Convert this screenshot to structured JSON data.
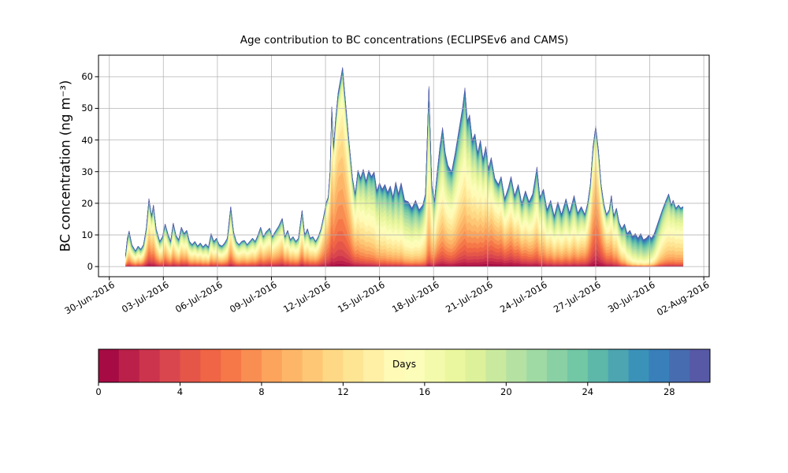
{
  "chart_data": {
    "type": "area",
    "title": "Age contribution to BC concentrations (ECLIPSEv6 and CAMS)",
    "ylabel": "BC concentration (ng m⁻³)",
    "xlabel": "",
    "x_tick_labels": [
      "30-Jun-2016",
      "03-Jul-2016",
      "06-Jul-2016",
      "09-Jul-2016",
      "12-Jul-2016",
      "15-Jul-2016",
      "18-Jul-2016",
      "21-Jul-2016",
      "24-Jul-2016",
      "27-Jul-2016",
      "30-Jul-2016",
      "02-Aug-2016"
    ],
    "x_tick_days": [
      0,
      3,
      6,
      9,
      12,
      15,
      18,
      21,
      24,
      27,
      30,
      33
    ],
    "y_ticks": [
      0,
      10,
      20,
      30,
      40,
      50,
      60
    ],
    "xlim_days": [
      -0.6,
      33.3
    ],
    "ylim": [
      -3.2,
      66.8
    ],
    "grid": true,
    "grid_color": "#b0b0b0",
    "spine_color": "#000000",
    "background": "#ffffff",
    "legend_position": "colorbar-bottom",
    "colorbar": {
      "label": "Days",
      "tick_values": [
        0,
        4,
        8,
        12,
        16,
        20,
        24,
        28
      ],
      "tick_labels": [
        "0",
        "4",
        "8",
        "12",
        "16",
        "20",
        "24",
        "28"
      ],
      "min": 0,
      "max": 30,
      "segments": 30
    },
    "colormap_anchors": [
      "#9e0142",
      "#d53e4f",
      "#f46d43",
      "#fdae61",
      "#fee08b",
      "#ffffbf",
      "#e6f598",
      "#abdda4",
      "#66c2a5",
      "#3288bd",
      "#5e4fa2"
    ],
    "age_bins": 30,
    "age_floor_fraction": 0.05,
    "series_columns": [
      "day_since_30jun2016",
      "total_bc_ng_m3",
      "age_mean_days",
      "age_sigma_days"
    ],
    "points": [
      [
        0.9,
        3.5,
        14,
        7
      ],
      [
        1.0,
        9,
        14,
        7
      ],
      [
        1.1,
        11.3,
        14,
        7
      ],
      [
        1.25,
        7,
        14,
        7
      ],
      [
        1.45,
        5,
        14.5,
        7
      ],
      [
        1.6,
        6.5,
        14,
        7
      ],
      [
        1.75,
        5.5,
        14,
        7
      ],
      [
        1.9,
        7,
        13,
        7
      ],
      [
        2.05,
        12,
        11.5,
        6.5
      ],
      [
        2.2,
        21.5,
        11,
        6.5
      ],
      [
        2.35,
        16,
        11,
        6.5
      ],
      [
        2.45,
        19.5,
        11.5,
        6.5
      ],
      [
        2.6,
        12,
        12,
        6.5
      ],
      [
        2.8,
        8,
        13,
        7
      ],
      [
        2.95,
        9.5,
        13,
        7
      ],
      [
        3.1,
        13.5,
        12,
        6.5
      ],
      [
        3.25,
        10.5,
        13,
        7
      ],
      [
        3.4,
        8,
        13,
        7
      ],
      [
        3.55,
        13.8,
        12.5,
        6.5
      ],
      [
        3.7,
        10,
        13,
        7
      ],
      [
        3.85,
        8.5,
        13.5,
        7
      ],
      [
        4.0,
        12.5,
        13,
        7
      ],
      [
        4.15,
        10.5,
        13,
        7
      ],
      [
        4.3,
        11.5,
        13,
        7
      ],
      [
        4.45,
        8,
        14,
        7
      ],
      [
        4.6,
        7,
        14,
        7
      ],
      [
        4.75,
        8,
        14,
        7
      ],
      [
        4.9,
        6.5,
        14,
        7
      ],
      [
        5.05,
        7.5,
        14,
        7
      ],
      [
        5.2,
        6.3,
        14.5,
        7
      ],
      [
        5.35,
        7.2,
        14.5,
        7
      ],
      [
        5.5,
        6.2,
        15,
        7
      ],
      [
        5.65,
        10.5,
        14,
        7
      ],
      [
        5.8,
        8,
        14,
        7
      ],
      [
        5.95,
        9,
        14,
        7
      ],
      [
        6.1,
        7,
        14,
        7
      ],
      [
        6.25,
        6.5,
        14,
        7
      ],
      [
        6.4,
        7.5,
        14,
        7
      ],
      [
        6.55,
        9,
        13.5,
        6.5
      ],
      [
        6.74,
        19,
        12.5,
        6
      ],
      [
        6.9,
        11,
        13,
        6.5
      ],
      [
        7.05,
        8,
        13.5,
        6.5
      ],
      [
        7.2,
        7,
        13.5,
        6.5
      ],
      [
        7.35,
        8,
        13.5,
        6.5
      ],
      [
        7.5,
        8.3,
        13.5,
        6.5
      ],
      [
        7.65,
        7,
        13.5,
        6.5
      ],
      [
        7.8,
        8,
        13.5,
        6.5
      ],
      [
        7.95,
        9,
        13.5,
        6.5
      ],
      [
        8.1,
        8,
        13.5,
        6.5
      ],
      [
        8.25,
        10,
        13,
        6.5
      ],
      [
        8.4,
        12.5,
        12.5,
        6.5
      ],
      [
        8.55,
        9.5,
        12.5,
        6.5
      ],
      [
        8.7,
        11,
        12.5,
        6.5
      ],
      [
        8.9,
        12.2,
        12,
        6.5
      ],
      [
        9.05,
        9.5,
        12.5,
        6.5
      ],
      [
        9.2,
        11,
        12.5,
        6.5
      ],
      [
        9.4,
        12.8,
        12.5,
        6.5
      ],
      [
        9.6,
        15.3,
        12,
        6.5
      ],
      [
        9.75,
        9.5,
        12.5,
        6.5
      ],
      [
        9.9,
        11.5,
        12.5,
        6.5
      ],
      [
        10.05,
        8.5,
        13,
        6.5
      ],
      [
        10.2,
        9.5,
        13,
        6.5
      ],
      [
        10.35,
        8,
        13,
        6.5
      ],
      [
        10.5,
        9,
        13,
        6.5
      ],
      [
        10.7,
        17.8,
        12.5,
        6.5
      ],
      [
        10.85,
        10,
        13,
        6.5
      ],
      [
        11.0,
        12,
        13,
        6.5
      ],
      [
        11.15,
        9,
        13,
        6.5
      ],
      [
        11.3,
        9.5,
        13,
        6.5
      ],
      [
        11.45,
        8,
        12.5,
        6.5
      ],
      [
        11.6,
        9.5,
        12,
        6
      ],
      [
        11.75,
        12,
        11,
        5.5
      ],
      [
        11.9,
        16,
        10.5,
        5
      ],
      [
        12.05,
        20.5,
        10,
        5
      ],
      [
        12.15,
        22,
        9.5,
        4.5
      ],
      [
        12.25,
        30,
        9.5,
        4.5
      ],
      [
        12.35,
        50.5,
        9.5,
        4.5
      ],
      [
        12.45,
        38,
        9.5,
        4.5
      ],
      [
        12.55,
        46,
        9.5,
        4.5
      ],
      [
        12.7,
        55,
        9.5,
        4.5
      ],
      [
        12.95,
        63,
        10,
        4.5
      ],
      [
        13.1,
        53,
        10,
        4.5
      ],
      [
        13.3,
        40,
        10.5,
        5
      ],
      [
        13.5,
        28,
        11.5,
        5.5
      ],
      [
        13.65,
        23,
        12.5,
        6
      ],
      [
        13.8,
        30.5,
        13.5,
        6
      ],
      [
        13.95,
        28,
        14,
        6
      ],
      [
        14.1,
        30.8,
        14.5,
        6
      ],
      [
        14.25,
        27,
        14.5,
        6
      ],
      [
        14.4,
        30.5,
        15,
        6
      ],
      [
        14.55,
        28.5,
        15,
        6
      ],
      [
        14.7,
        30,
        15.5,
        6
      ],
      [
        14.85,
        24,
        15.5,
        6
      ],
      [
        15.0,
        26.5,
        16,
        6
      ],
      [
        15.15,
        24.5,
        16,
        6
      ],
      [
        15.3,
        26,
        16,
        6
      ],
      [
        15.45,
        23.5,
        16.5,
        6
      ],
      [
        15.6,
        25.5,
        16.5,
        6
      ],
      [
        15.75,
        22,
        16.5,
        6
      ],
      [
        15.9,
        26.8,
        17,
        6
      ],
      [
        16.05,
        23,
        17,
        6
      ],
      [
        16.2,
        26.5,
        17,
        6
      ],
      [
        16.4,
        21,
        17.5,
        6
      ],
      [
        16.6,
        20.5,
        17.5,
        6
      ],
      [
        16.8,
        18.5,
        17.5,
        6
      ],
      [
        17.0,
        21,
        17.5,
        6
      ],
      [
        17.2,
        18,
        17,
        6
      ],
      [
        17.4,
        19.5,
        16,
        5.5
      ],
      [
        17.55,
        23,
        15,
        5
      ],
      [
        17.74,
        57,
        14,
        5
      ],
      [
        17.9,
        26,
        14,
        5.5
      ],
      [
        18.05,
        21,
        14,
        6.5
      ],
      [
        18.2,
        30,
        14,
        7
      ],
      [
        18.35,
        38,
        14,
        7
      ],
      [
        18.5,
        44,
        14,
        7
      ],
      [
        18.65,
        36,
        14,
        7
      ],
      [
        18.8,
        32,
        14,
        7
      ],
      [
        19.0,
        30,
        14,
        7
      ],
      [
        19.2,
        36,
        14,
        7
      ],
      [
        19.4,
        43,
        13.5,
        7
      ],
      [
        19.6,
        50,
        13.5,
        7
      ],
      [
        19.74,
        56.5,
        13.5,
        7
      ],
      [
        19.88,
        46,
        13.5,
        7
      ],
      [
        20.0,
        48,
        13.5,
        7
      ],
      [
        20.15,
        40,
        13,
        7.5
      ],
      [
        20.3,
        42,
        13,
        7.5
      ],
      [
        20.45,
        36,
        12.5,
        7.5
      ],
      [
        20.6,
        40,
        12.5,
        7.5
      ],
      [
        20.75,
        34,
        12,
        8
      ],
      [
        20.9,
        38,
        11.5,
        8
      ],
      [
        21.05,
        31,
        11,
        8
      ],
      [
        21.2,
        34.5,
        11,
        8
      ],
      [
        21.4,
        28,
        10.5,
        8
      ],
      [
        21.6,
        26,
        10.5,
        8
      ],
      [
        21.75,
        28.5,
        10.5,
        8
      ],
      [
        21.95,
        21.5,
        11,
        8
      ],
      [
        22.15,
        25,
        11,
        8
      ],
      [
        22.3,
        28.5,
        11,
        8
      ],
      [
        22.5,
        22.5,
        11.5,
        8
      ],
      [
        22.7,
        26,
        12,
        8
      ],
      [
        22.9,
        20,
        12.5,
        8
      ],
      [
        23.1,
        24,
        13,
        7.5
      ],
      [
        23.3,
        20.5,
        13,
        7.5
      ],
      [
        23.5,
        23,
        13.5,
        7.5
      ],
      [
        23.74,
        31.5,
        13.5,
        7
      ],
      [
        23.9,
        22,
        14,
        7
      ],
      [
        24.1,
        24.5,
        14,
        7
      ],
      [
        24.3,
        18,
        14.5,
        7
      ],
      [
        24.5,
        21,
        14.5,
        7
      ],
      [
        24.7,
        16,
        15,
        7
      ],
      [
        24.9,
        20.5,
        15,
        7
      ],
      [
        25.1,
        16.5,
        15,
        7
      ],
      [
        25.35,
        21.5,
        15,
        7
      ],
      [
        25.55,
        17,
        15,
        7
      ],
      [
        25.8,
        22.5,
        14.5,
        7
      ],
      [
        26.0,
        17,
        14.5,
        7
      ],
      [
        26.2,
        19,
        14,
        7
      ],
      [
        26.4,
        16.5,
        13,
        6.5
      ],
      [
        26.55,
        20,
        12,
        6
      ],
      [
        26.7,
        26,
        10.5,
        5.5
      ],
      [
        26.85,
        38,
        9.5,
        5
      ],
      [
        27.0,
        44.5,
        9,
        5
      ],
      [
        27.15,
        37,
        9,
        5
      ],
      [
        27.3,
        26,
        9.5,
        5.5
      ],
      [
        27.45,
        20,
        10.5,
        6
      ],
      [
        27.6,
        16.5,
        11.5,
        6
      ],
      [
        27.75,
        18,
        12,
        6
      ],
      [
        27.87,
        22.5,
        12.5,
        6
      ],
      [
        28.0,
        16,
        13,
        6
      ],
      [
        28.15,
        18.5,
        13.5,
        6
      ],
      [
        28.3,
        14,
        14.5,
        6
      ],
      [
        28.45,
        12,
        16,
        6
      ],
      [
        28.6,
        13.5,
        17,
        6
      ],
      [
        28.75,
        10.5,
        18.5,
        6
      ],
      [
        28.9,
        11.5,
        19.5,
        5.5
      ],
      [
        29.05,
        9.5,
        20.5,
        5.5
      ],
      [
        29.2,
        10.5,
        21,
        5.5
      ],
      [
        29.35,
        9,
        21.5,
        5.5
      ],
      [
        29.5,
        10.5,
        21.5,
        5.5
      ],
      [
        29.65,
        8.5,
        21.5,
        5.5
      ],
      [
        29.8,
        9,
        21.5,
        5.5
      ],
      [
        29.95,
        10,
        21,
        5.5
      ],
      [
        30.1,
        9,
        20.5,
        5.5
      ],
      [
        30.25,
        10.5,
        19.5,
        5.5
      ],
      [
        30.4,
        13,
        18,
        5.5
      ],
      [
        30.55,
        15.5,
        16.5,
        5.5
      ],
      [
        30.7,
        18,
        15.5,
        5
      ],
      [
        30.9,
        21,
        15,
        5
      ],
      [
        31.05,
        23,
        15,
        5
      ],
      [
        31.2,
        19.5,
        14.5,
        5
      ],
      [
        31.3,
        21,
        14.5,
        5
      ],
      [
        31.45,
        18.5,
        14.5,
        5
      ],
      [
        31.6,
        19.5,
        14.5,
        5
      ],
      [
        31.72,
        18.5,
        14.5,
        5
      ],
      [
        31.85,
        19,
        14.5,
        5
      ]
    ]
  }
}
